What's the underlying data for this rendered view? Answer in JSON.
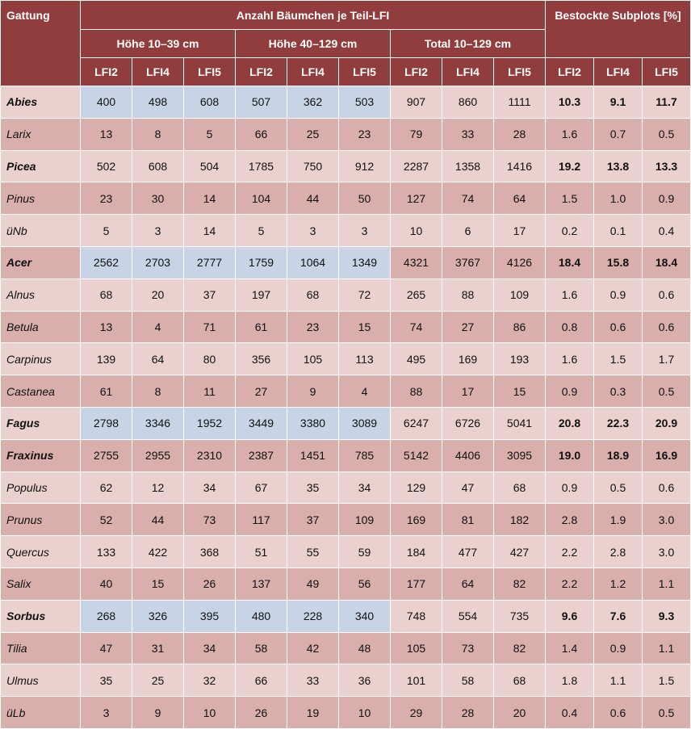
{
  "header": {
    "gattung": "Gattung",
    "anzahl": "Anzahl Bäumchen je Teil-LFI",
    "subplots": "Bestockte Subplots [%]",
    "groups": [
      "Höhe 10–39 cm",
      "Höhe 40–129 cm",
      "Total 10–129 cm"
    ],
    "lfi": [
      "LFI2",
      "LFI4",
      "LFI5",
      "LFI2",
      "LFI4",
      "LFI5",
      "LFI2",
      "LFI4",
      "LFI5",
      "LFI2",
      "LFI4",
      "LFI5"
    ]
  },
  "rows": [
    {
      "name": "Abies",
      "bold": true,
      "highlight": true,
      "values": [
        "400",
        "498",
        "608",
        "507",
        "362",
        "503",
        "907",
        "860",
        "1111",
        "10.3",
        "9.1",
        "11.7"
      ]
    },
    {
      "name": "Larix",
      "bold": false,
      "highlight": false,
      "values": [
        "13",
        "8",
        "5",
        "66",
        "25",
        "23",
        "79",
        "33",
        "28",
        "1.6",
        "0.7",
        "0.5"
      ]
    },
    {
      "name": "Picea",
      "bold": true,
      "highlight": false,
      "values": [
        "502",
        "608",
        "504",
        "1785",
        "750",
        "912",
        "2287",
        "1358",
        "1416",
        "19.2",
        "13.8",
        "13.3"
      ]
    },
    {
      "name": "Pinus",
      "bold": false,
      "highlight": false,
      "values": [
        "23",
        "30",
        "14",
        "104",
        "44",
        "50",
        "127",
        "74",
        "64",
        "1.5",
        "1.0",
        "0.9"
      ]
    },
    {
      "name": "üNb",
      "bold": false,
      "highlight": false,
      "values": [
        "5",
        "3",
        "14",
        "5",
        "3",
        "3",
        "10",
        "6",
        "17",
        "0.2",
        "0.1",
        "0.4"
      ]
    },
    {
      "name": "Acer",
      "bold": true,
      "highlight": true,
      "values": [
        "2562",
        "2703",
        "2777",
        "1759",
        "1064",
        "1349",
        "4321",
        "3767",
        "4126",
        "18.4",
        "15.8",
        "18.4"
      ]
    },
    {
      "name": "Alnus",
      "bold": false,
      "highlight": false,
      "values": [
        "68",
        "20",
        "37",
        "197",
        "68",
        "72",
        "265",
        "88",
        "109",
        "1.6",
        "0.9",
        "0.6"
      ]
    },
    {
      "name": "Betula",
      "bold": false,
      "highlight": false,
      "values": [
        "13",
        "4",
        "71",
        "61",
        "23",
        "15",
        "74",
        "27",
        "86",
        "0.8",
        "0.6",
        "0.6"
      ]
    },
    {
      "name": "Carpinus",
      "bold": false,
      "highlight": false,
      "values": [
        "139",
        "64",
        "80",
        "356",
        "105",
        "113",
        "495",
        "169",
        "193",
        "1.6",
        "1.5",
        "1.7"
      ]
    },
    {
      "name": "Castanea",
      "bold": false,
      "highlight": false,
      "values": [
        "61",
        "8",
        "11",
        "27",
        "9",
        "4",
        "88",
        "17",
        "15",
        "0.9",
        "0.3",
        "0.5"
      ]
    },
    {
      "name": "Fagus",
      "bold": true,
      "highlight": true,
      "values": [
        "2798",
        "3346",
        "1952",
        "3449",
        "3380",
        "3089",
        "6247",
        "6726",
        "5041",
        "20.8",
        "22.3",
        "20.9"
      ]
    },
    {
      "name": "Fraxinus",
      "bold": true,
      "highlight": false,
      "values": [
        "2755",
        "2955",
        "2310",
        "2387",
        "1451",
        "785",
        "5142",
        "4406",
        "3095",
        "19.0",
        "18.9",
        "16.9"
      ]
    },
    {
      "name": "Populus",
      "bold": false,
      "highlight": false,
      "values": [
        "62",
        "12",
        "34",
        "67",
        "35",
        "34",
        "129",
        "47",
        "68",
        "0.9",
        "0.5",
        "0.6"
      ]
    },
    {
      "name": "Prunus",
      "bold": false,
      "highlight": false,
      "values": [
        "52",
        "44",
        "73",
        "117",
        "37",
        "109",
        "169",
        "81",
        "182",
        "2.8",
        "1.9",
        "3.0"
      ]
    },
    {
      "name": "Quercus",
      "bold": false,
      "highlight": false,
      "values": [
        "133",
        "422",
        "368",
        "51",
        "55",
        "59",
        "184",
        "477",
        "427",
        "2.2",
        "2.8",
        "3.0"
      ]
    },
    {
      "name": "Salix",
      "bold": false,
      "highlight": false,
      "values": [
        "40",
        "15",
        "26",
        "137",
        "49",
        "56",
        "177",
        "64",
        "82",
        "2.2",
        "1.2",
        "1.1"
      ]
    },
    {
      "name": "Sorbus",
      "bold": true,
      "highlight": true,
      "values": [
        "268",
        "326",
        "395",
        "480",
        "228",
        "340",
        "748",
        "554",
        "735",
        "9.6",
        "7.6",
        "9.3"
      ]
    },
    {
      "name": "Tilia",
      "bold": false,
      "highlight": false,
      "values": [
        "47",
        "31",
        "34",
        "58",
        "42",
        "48",
        "105",
        "73",
        "82",
        "1.4",
        "0.9",
        "1.1"
      ]
    },
    {
      "name": "Ulmus",
      "bold": false,
      "highlight": false,
      "values": [
        "35",
        "25",
        "32",
        "66",
        "33",
        "36",
        "101",
        "58",
        "68",
        "1.8",
        "1.1",
        "1.5"
      ]
    },
    {
      "name": "üLb",
      "bold": false,
      "highlight": false,
      "values": [
        "3",
        "9",
        "10",
        "26",
        "19",
        "10",
        "29",
        "28",
        "20",
        "0.4",
        "0.6",
        "0.5"
      ]
    }
  ],
  "colors": {
    "header": "#923d3d",
    "row_light": "#ead0ce",
    "row_dark": "#d8afab",
    "highlight": "#c7d4e5"
  }
}
